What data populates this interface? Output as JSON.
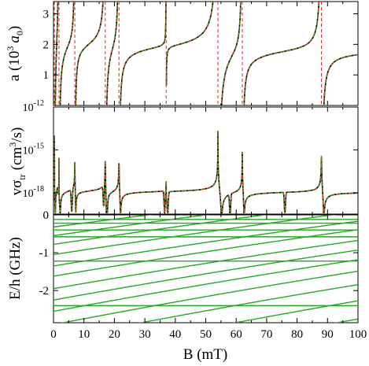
{
  "chart_data": [
    {
      "type": "line",
      "panel": "top",
      "ylabel": "a (10",
      "ylabel_sup": "3",
      "ylabel_unit": "a",
      "ylabel_sub": "0",
      "ylabel_close": ")",
      "yticks": [
        "1",
        "2",
        "3"
      ],
      "ylim": [
        0,
        3.4
      ],
      "x_tick_labels_shown": false,
      "series": [
        {
          "style": "solid",
          "color": "#000000"
        },
        {
          "style": "dashed",
          "color": "#e8201a"
        },
        {
          "style": "dotted",
          "color": "#22bb22"
        }
      ],
      "background": 1.9,
      "resonances": [
        {
          "x": 0.3,
          "w": 0.3
        },
        {
          "x": 1.8,
          "w": 0.4
        },
        {
          "x": 7.0,
          "w": 0.3
        },
        {
          "x": 17.0,
          "w": 0.5
        },
        {
          "x": 21.5,
          "w": 0.5
        },
        {
          "x": 37.0,
          "w": 0.05
        },
        {
          "x": 54.0,
          "w": 1.2
        },
        {
          "x": 62.0,
          "w": 0.6
        },
        {
          "x": 88.0,
          "w": 0.8
        }
      ]
    },
    {
      "type": "line",
      "panel": "middle",
      "ylabel": "vσ",
      "ylabel_sub": "tr",
      "ylabel_unit": "(cm",
      "ylabel_sup": "3",
      "ylabel_close": "/s)",
      "y_scale": "log",
      "ylim_exp": [
        -19.5,
        -12
      ],
      "yticks": [
        {
          "mant": "10",
          "exp": "-12",
          "val": -12
        },
        {
          "mant": "10",
          "exp": "-15",
          "val": -15
        },
        {
          "mant": "10",
          "exp": "-18",
          "val": -18
        }
      ],
      "x_tick_labels_shown": false,
      "series": [
        {
          "style": "solid",
          "color": "#000000"
        },
        {
          "style": "dashed",
          "color": "#e8201a"
        },
        {
          "style": "dotted",
          "color": "#22bb22"
        }
      ],
      "zeros": [
        0.3,
        1.8,
        6.0,
        16.5,
        17.5,
        36.5,
        37.5,
        58.0,
        76.0
      ]
    },
    {
      "type": "line",
      "panel": "bottom",
      "ylabel": "E/h (GHz)",
      "xlabel": "B (mT)",
      "xlim": [
        0,
        100
      ],
      "ylim": [
        -2.85,
        0
      ],
      "xticks": [
        "0",
        "10",
        "20",
        "30",
        "40",
        "50",
        "60",
        "70",
        "80",
        "90",
        "100"
      ],
      "yticks": [
        "0",
        "-1",
        "-2"
      ],
      "line_color": "#22aa22",
      "levels": [
        {
          "e0": -0.12,
          "slope": 0.0
        },
        {
          "e0": -0.22,
          "slope": 0.0
        },
        {
          "e0": -0.4,
          "slope": 0.0
        },
        {
          "e0": -0.58,
          "slope": 0.0
        },
        {
          "e0": -1.22,
          "slope": 0.0
        },
        {
          "e0": -2.4,
          "slope": 0.0
        },
        {
          "e0": -0.32,
          "slope": 0.0105
        },
        {
          "e0": -0.55,
          "slope": 0.0115
        },
        {
          "e0": -0.78,
          "slope": 0.012
        },
        {
          "e0": -1.05,
          "slope": 0.0125
        },
        {
          "e0": -1.35,
          "slope": 0.013
        },
        {
          "e0": -1.62,
          "slope": 0.0135
        },
        {
          "e0": -1.95,
          "slope": 0.014
        },
        {
          "e0": -2.25,
          "slope": 0.0145
        },
        {
          "e0": -2.55,
          "slope": 0.015
        },
        {
          "e0": -2.9,
          "slope": 0.0155
        },
        {
          "e0": -3.3,
          "slope": 0.016
        },
        {
          "e0": -3.8,
          "slope": 0.0168
        },
        {
          "e0": -4.3,
          "slope": 0.017
        }
      ]
    }
  ]
}
